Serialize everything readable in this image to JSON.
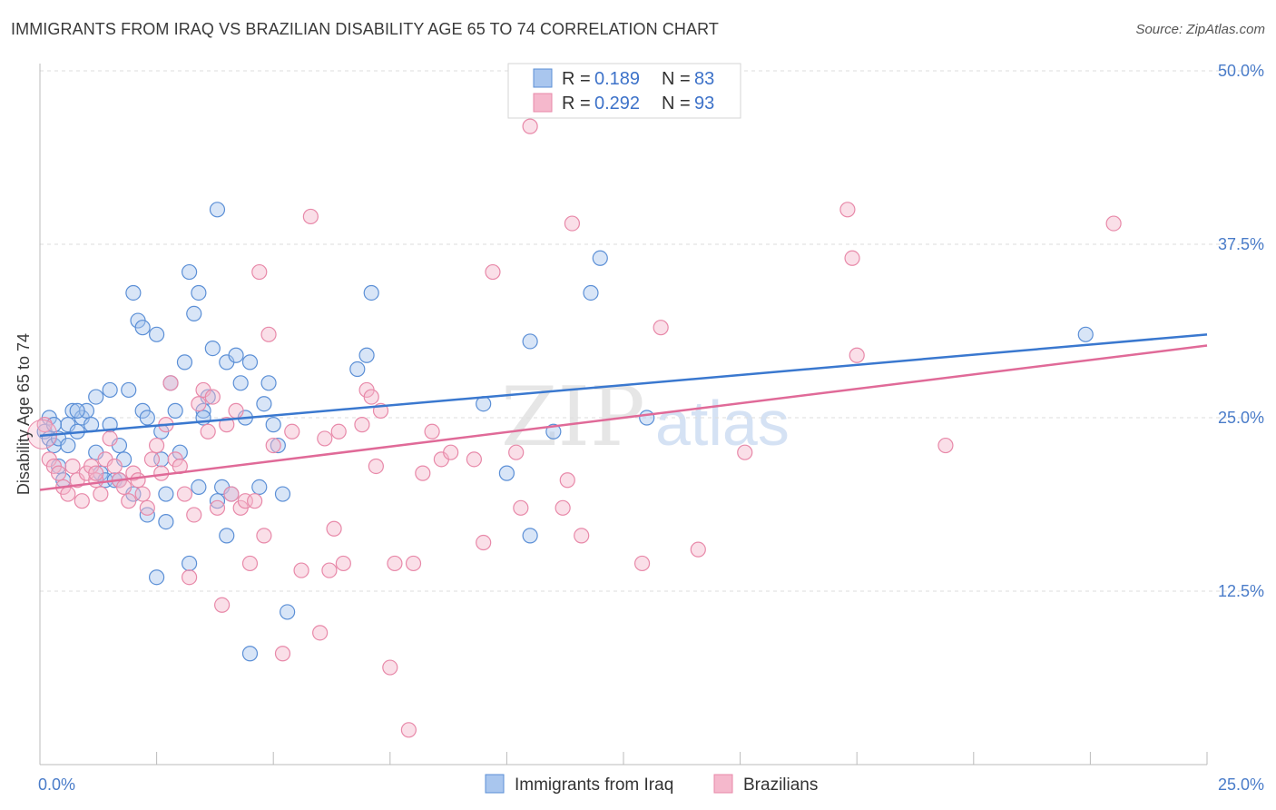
{
  "title": "IMMIGRANTS FROM IRAQ VS BRAZILIAN DISABILITY AGE 65 TO 74 CORRELATION CHART",
  "source": "Source: ZipAtlas.com",
  "watermark": {
    "zip": "ZIP",
    "atlas": "atlas"
  },
  "colors": {
    "iraq_fill": "#a9c6ee",
    "iraq_stroke": "#5b8fd6",
    "iraq_line": "#3a78cf",
    "brazil_fill": "#f5b8cc",
    "brazil_stroke": "#e889a9",
    "brazil_line": "#e06a98",
    "grid": "#dddddd",
    "axis_text": "#4a7cc9"
  },
  "legend": {
    "rows": [
      {
        "r_label": "R =",
        "r_value": "0.189",
        "n_label": "N =",
        "n_value": "83"
      },
      {
        "r_label": "R =",
        "r_value": "0.292",
        "n_label": "N =",
        "n_value": "93"
      }
    ]
  },
  "bottom_legend": [
    "Immigrants from Iraq",
    "Brazilians"
  ],
  "chart_data": {
    "type": "scatter",
    "title": "IMMIGRANTS FROM IRAQ VS BRAZILIAN DISABILITY AGE 65 TO 74 CORRELATION CHART",
    "xlabel": "",
    "ylabel": "Disability Age 65 to 74",
    "xlim": [
      0,
      25
    ],
    "ylim": [
      0,
      50
    ],
    "x_tick_labels": [
      "0.0%",
      "25.0%"
    ],
    "y_ticks": [
      12.5,
      25.0,
      37.5,
      50.0
    ],
    "y_tick_labels": [
      "12.5%",
      "25.0%",
      "37.5%",
      "50.0%"
    ],
    "grid": true,
    "legend_position": "top-center",
    "series": [
      {
        "name": "Immigrants from Iraq",
        "r": 0.189,
        "n": 83,
        "trend": {
          "x": [
            0,
            25
          ],
          "y": [
            23.7,
            31.0
          ]
        },
        "points": [
          [
            0.1,
            24.0
          ],
          [
            0.2,
            23.5
          ],
          [
            0.3,
            23.0
          ],
          [
            0.4,
            21.5
          ],
          [
            0.5,
            20.5
          ],
          [
            0.6,
            24.5
          ],
          [
            0.7,
            25.5
          ],
          [
            0.8,
            24.0
          ],
          [
            0.9,
            25.0
          ],
          [
            1.0,
            25.5
          ],
          [
            1.1,
            24.5
          ],
          [
            1.2,
            26.5
          ],
          [
            1.3,
            21.0
          ],
          [
            1.4,
            20.5
          ],
          [
            1.5,
            24.5
          ],
          [
            1.6,
            20.5
          ],
          [
            1.7,
            23.0
          ],
          [
            1.8,
            22.0
          ],
          [
            1.9,
            27.0
          ],
          [
            2.0,
            34.0
          ],
          [
            2.1,
            32.0
          ],
          [
            2.2,
            31.5
          ],
          [
            2.2,
            25.5
          ],
          [
            2.3,
            25.0
          ],
          [
            2.3,
            18.0
          ],
          [
            2.5,
            13.5
          ],
          [
            2.5,
            31.0
          ],
          [
            2.6,
            24.0
          ],
          [
            2.7,
            19.5
          ],
          [
            2.8,
            27.5
          ],
          [
            2.9,
            25.5
          ],
          [
            3.0,
            22.5
          ],
          [
            3.1,
            29.0
          ],
          [
            3.2,
            35.5
          ],
          [
            3.3,
            32.5
          ],
          [
            3.4,
            34.0
          ],
          [
            3.5,
            25.5
          ],
          [
            3.5,
            25.0
          ],
          [
            3.6,
            26.5
          ],
          [
            3.7,
            30.0
          ],
          [
            3.8,
            19.0
          ],
          [
            3.9,
            20.0
          ],
          [
            4.0,
            16.5
          ],
          [
            4.0,
            29.0
          ],
          [
            4.2,
            29.5
          ],
          [
            4.3,
            27.5
          ],
          [
            4.4,
            25.0
          ],
          [
            4.5,
            29.0
          ],
          [
            4.5,
            8.0
          ],
          [
            4.7,
            20.0
          ],
          [
            4.8,
            26.0
          ],
          [
            4.9,
            27.5
          ],
          [
            5.0,
            24.5
          ],
          [
            5.1,
            23.0
          ],
          [
            5.2,
            19.5
          ],
          [
            5.3,
            11.0
          ],
          [
            6.8,
            28.5
          ],
          [
            7.0,
            29.5
          ],
          [
            7.1,
            34.0
          ],
          [
            9.5,
            26.0
          ],
          [
            10.0,
            21.0
          ],
          [
            10.5,
            30.5
          ],
          [
            10.5,
            16.5
          ],
          [
            11.0,
            24.0
          ],
          [
            11.8,
            34.0
          ],
          [
            12.0,
            36.5
          ],
          [
            13.0,
            25.0
          ],
          [
            22.4,
            31.0
          ],
          [
            0.2,
            25.0
          ],
          [
            3.2,
            14.5
          ],
          [
            2.6,
            22.0
          ],
          [
            0.8,
            25.5
          ],
          [
            1.7,
            20.5
          ],
          [
            3.8,
            40.0
          ],
          [
            2.7,
            17.5
          ],
          [
            1.2,
            22.5
          ],
          [
            0.4,
            23.5
          ],
          [
            0.3,
            24.5
          ],
          [
            2.0,
            19.5
          ],
          [
            1.5,
            27.0
          ],
          [
            3.4,
            20.0
          ],
          [
            0.6,
            23.0
          ],
          [
            4.1,
            19.5
          ]
        ]
      },
      {
        "name": "Brazilians",
        "r": 0.292,
        "n": 93,
        "trend": {
          "x": [
            0,
            25
          ],
          "y": [
            19.8,
            30.2
          ]
        },
        "points": [
          [
            0.1,
            24.5
          ],
          [
            0.2,
            22.0
          ],
          [
            0.3,
            21.5
          ],
          [
            0.4,
            21.0
          ],
          [
            0.5,
            20.0
          ],
          [
            0.6,
            19.5
          ],
          [
            0.7,
            21.5
          ],
          [
            0.8,
            20.5
          ],
          [
            0.9,
            19.0
          ],
          [
            1.0,
            21.0
          ],
          [
            1.1,
            21.5
          ],
          [
            1.2,
            20.5
          ],
          [
            1.3,
            19.5
          ],
          [
            1.4,
            22.0
          ],
          [
            1.5,
            23.5
          ],
          [
            1.6,
            21.5
          ],
          [
            1.7,
            20.5
          ],
          [
            1.8,
            20.0
          ],
          [
            1.9,
            19.0
          ],
          [
            2.0,
            21.0
          ],
          [
            2.1,
            20.5
          ],
          [
            2.2,
            19.5
          ],
          [
            2.3,
            18.5
          ],
          [
            2.4,
            22.0
          ],
          [
            2.5,
            23.0
          ],
          [
            2.6,
            21.0
          ],
          [
            2.7,
            24.5
          ],
          [
            2.8,
            27.5
          ],
          [
            2.9,
            22.0
          ],
          [
            3.0,
            21.5
          ],
          [
            3.1,
            19.5
          ],
          [
            3.2,
            13.5
          ],
          [
            3.3,
            18.0
          ],
          [
            3.4,
            26.0
          ],
          [
            3.5,
            27.0
          ],
          [
            3.6,
            24.0
          ],
          [
            3.7,
            26.5
          ],
          [
            3.8,
            18.5
          ],
          [
            3.9,
            11.5
          ],
          [
            4.0,
            24.5
          ],
          [
            4.1,
            19.5
          ],
          [
            4.2,
            25.5
          ],
          [
            4.3,
            18.5
          ],
          [
            4.4,
            19.0
          ],
          [
            4.5,
            14.5
          ],
          [
            4.6,
            19.0
          ],
          [
            4.7,
            35.5
          ],
          [
            4.8,
            16.5
          ],
          [
            4.9,
            31.0
          ],
          [
            5.0,
            23.0
          ],
          [
            5.2,
            8.0
          ],
          [
            5.4,
            24.0
          ],
          [
            5.6,
            14.0
          ],
          [
            5.8,
            39.5
          ],
          [
            6.0,
            9.5
          ],
          [
            6.1,
            23.5
          ],
          [
            6.2,
            14.0
          ],
          [
            6.3,
            17.0
          ],
          [
            6.4,
            24.0
          ],
          [
            6.5,
            14.5
          ],
          [
            6.9,
            24.5
          ],
          [
            7.0,
            27.0
          ],
          [
            7.1,
            26.5
          ],
          [
            7.2,
            21.5
          ],
          [
            7.3,
            25.5
          ],
          [
            7.5,
            7.0
          ],
          [
            7.6,
            14.5
          ],
          [
            7.9,
            2.5
          ],
          [
            8.0,
            14.5
          ],
          [
            8.2,
            21.0
          ],
          [
            8.4,
            24.0
          ],
          [
            8.6,
            22.0
          ],
          [
            8.8,
            22.5
          ],
          [
            9.3,
            22.0
          ],
          [
            9.5,
            16.0
          ],
          [
            9.7,
            35.5
          ],
          [
            10.2,
            22.5
          ],
          [
            10.3,
            18.5
          ],
          [
            10.5,
            46.0
          ],
          [
            11.2,
            18.5
          ],
          [
            11.3,
            20.5
          ],
          [
            11.4,
            39.0
          ],
          [
            11.6,
            16.5
          ],
          [
            12.9,
            14.5
          ],
          [
            13.3,
            31.5
          ],
          [
            14.1,
            15.5
          ],
          [
            15.1,
            22.5
          ],
          [
            17.3,
            40.0
          ],
          [
            17.4,
            36.5
          ],
          [
            17.5,
            29.5
          ],
          [
            19.4,
            23.0
          ],
          [
            23.0,
            39.0
          ],
          [
            1.2,
            21.0
          ]
        ]
      }
    ]
  }
}
